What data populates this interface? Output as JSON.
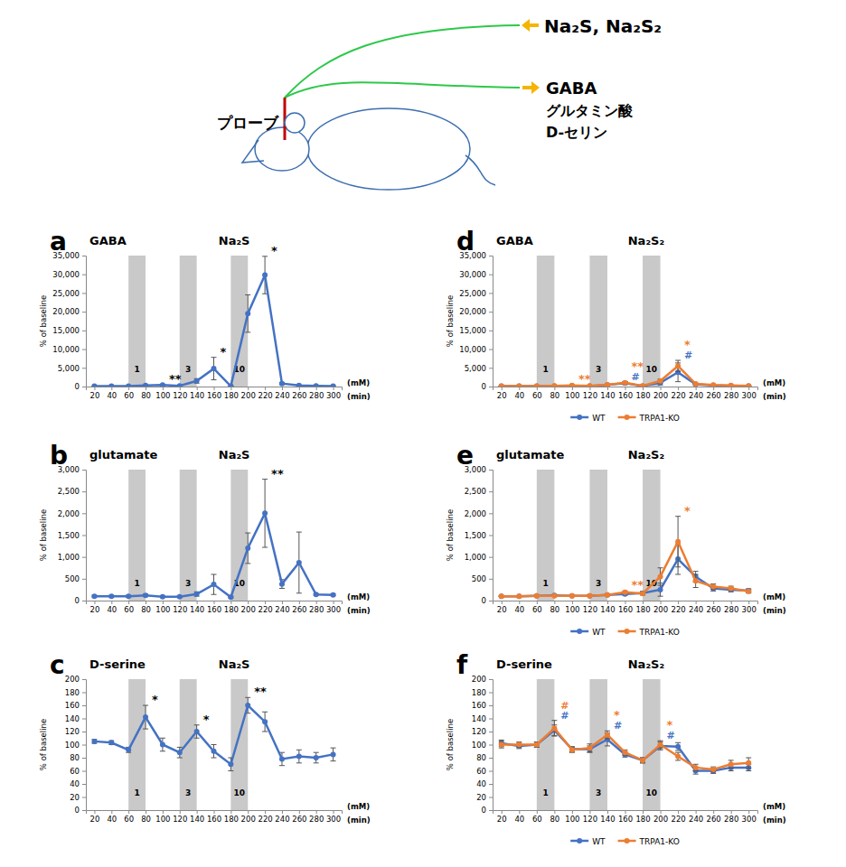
{
  "diagram": {
    "probe_label": "プローブ",
    "input_label": "Na₂S, Na₂S₂",
    "output_labels": [
      "GABA",
      "グルタミン酸",
      "D-セリン"
    ]
  },
  "chart_data": [
    {
      "type": "line",
      "panel": "a",
      "title": "GABA",
      "subtitle": "Na₂S",
      "y_label": "% of baseline",
      "x_label": "(min)",
      "band_label": "(mM)",
      "marker": "circle",
      "x": [
        20,
        40,
        60,
        80,
        100,
        120,
        140,
        160,
        180,
        200,
        220,
        240,
        260,
        280,
        300
      ],
      "xlim": [
        10,
        310
      ],
      "xticks": [
        20,
        40,
        60,
        80,
        100,
        120,
        140,
        160,
        180,
        200,
        220,
        240,
        260,
        280,
        300
      ],
      "ylim": [
        0,
        35000
      ],
      "yticks": [
        0,
        {
          "value": 5000,
          "label": "5,000"
        },
        {
          "value": 10000,
          "label": "10,000"
        },
        {
          "value": 15000,
          "label": "15,000"
        },
        {
          "value": 20000,
          "label": "20,000"
        },
        {
          "value": 25000,
          "label": "25,000"
        },
        {
          "value": 30000,
          "label": "30,000"
        },
        {
          "value": 35000,
          "label": "35,000"
        }
      ],
      "bands": [
        {
          "start": 60,
          "end": 80,
          "label": 1
        },
        {
          "start": 120,
          "end": 140,
          "label": 3
        },
        {
          "start": 180,
          "end": 200,
          "label": 10
        }
      ],
      "series": [
        {
          "color": "#4472c4",
          "values": [
            100,
            100,
            100,
            300,
            400,
            200,
            1500,
            4800,
            100,
            19500,
            29800,
            800,
            300,
            200,
            150
          ],
          "errors": [
            50,
            50,
            50,
            100,
            150,
            100,
            600,
            3000,
            50,
            5000,
            5000,
            300,
            100,
            50,
            50
          ],
          "significance": [
            null,
            null,
            null,
            null,
            "**",
            null,
            null,
            "*",
            null,
            null,
            "*",
            null,
            null,
            null,
            null
          ]
        }
      ]
    },
    {
      "type": "line",
      "panel": "b",
      "title": "glutamate",
      "subtitle": "Na₂S",
      "y_label": "% of baseline",
      "x_label": "(min)",
      "band_label": "(mM)",
      "marker": "circle",
      "x": [
        20,
        40,
        60,
        80,
        100,
        120,
        140,
        160,
        180,
        200,
        220,
        240,
        260,
        280,
        300
      ],
      "xlim": [
        10,
        310
      ],
      "xticks": [
        20,
        40,
        60,
        80,
        100,
        120,
        140,
        160,
        180,
        200,
        220,
        240,
        260,
        280,
        300
      ],
      "ylim": [
        0,
        3000
      ],
      "yticks": [
        0,
        500,
        {
          "value": 1000,
          "label": "1,000"
        },
        {
          "value": 1500,
          "label": "1,500"
        },
        {
          "value": 2000,
          "label": "2,000"
        },
        {
          "value": 2500,
          "label": "2,500"
        },
        {
          "value": 3000,
          "label": "3,000"
        }
      ],
      "bands": [
        {
          "start": 60,
          "end": 80,
          "label": 1
        },
        {
          "start": 120,
          "end": 140,
          "label": 3
        },
        {
          "start": 180,
          "end": 200,
          "label": 10
        }
      ],
      "series": [
        {
          "color": "#4472c4",
          "values": [
            100,
            100,
            100,
            120,
            90,
            90,
            150,
            370,
            80,
            1200,
            2000,
            380,
            870,
            140,
            130
          ],
          "errors": [
            20,
            20,
            20,
            30,
            20,
            20,
            50,
            230,
            20,
            350,
            780,
            100,
            700,
            20,
            20
          ],
          "significance": [
            null,
            null,
            null,
            null,
            null,
            null,
            null,
            null,
            null,
            null,
            "**",
            null,
            null,
            null,
            null
          ]
        }
      ]
    },
    {
      "type": "line",
      "panel": "c",
      "title": "D-serine",
      "subtitle": "Na₂S",
      "y_label": "% of baseline",
      "x_label": "(min)",
      "band_label": "(mM)",
      "marker": "circle",
      "x": [
        20,
        40,
        60,
        80,
        100,
        120,
        140,
        160,
        180,
        200,
        220,
        240,
        260,
        280,
        300
      ],
      "xlim": [
        10,
        310
      ],
      "xticks": [
        20,
        40,
        60,
        80,
        100,
        120,
        140,
        160,
        180,
        200,
        220,
        240,
        260,
        280,
        300
      ],
      "ylim": [
        0,
        200
      ],
      "yticks": [
        0,
        20,
        40,
        60,
        80,
        100,
        120,
        140,
        160,
        180,
        200
      ],
      "bands": [
        {
          "start": 60,
          "end": 80,
          "label": 1
        },
        {
          "start": 120,
          "end": 140,
          "label": 3
        },
        {
          "start": 180,
          "end": 200,
          "label": 10
        }
      ],
      "series": [
        {
          "color": "#4472c4",
          "values": [
            105,
            103,
            92,
            142,
            100,
            88,
            120,
            90,
            70,
            160,
            135,
            78,
            82,
            80,
            85
          ],
          "errors": [
            3,
            3,
            4,
            18,
            10,
            8,
            10,
            10,
            10,
            12,
            15,
            10,
            10,
            8,
            10
          ],
          "significance": [
            null,
            null,
            null,
            "*",
            null,
            null,
            "*",
            null,
            null,
            "**",
            null,
            null,
            null,
            null,
            null
          ]
        }
      ]
    },
    {
      "type": "line",
      "panel": "d",
      "title": "GABA",
      "subtitle": "Na₂S₂",
      "y_label": "% of baseline",
      "x_label": "(min)",
      "band_label": "(mM)",
      "marker": "circle",
      "legend": "bottom",
      "x": [
        20,
        40,
        60,
        80,
        100,
        120,
        140,
        160,
        180,
        200,
        220,
        240,
        260,
        280,
        300
      ],
      "xlim": [
        10,
        310
      ],
      "xticks": [
        20,
        40,
        60,
        80,
        100,
        120,
        140,
        160,
        180,
        200,
        220,
        240,
        260,
        280,
        300
      ],
      "ylim": [
        0,
        35000
      ],
      "yticks": [
        0,
        {
          "value": 5000,
          "label": "5,000"
        },
        {
          "value": 10000,
          "label": "10,000"
        },
        {
          "value": 15000,
          "label": "15,000"
        },
        {
          "value": 20000,
          "label": "20,000"
        },
        {
          "value": 25000,
          "label": "25,000"
        },
        {
          "value": 30000,
          "label": "30,000"
        },
        {
          "value": 35000,
          "label": "35,000"
        }
      ],
      "bands": [
        {
          "start": 60,
          "end": 80,
          "label": 1
        },
        {
          "start": 120,
          "end": 140,
          "label": 3
        },
        {
          "start": 180,
          "end": 200,
          "label": 10
        }
      ],
      "series": [
        {
          "name": "WT",
          "color": "#4472c4",
          "values": [
            100,
            100,
            100,
            150,
            200,
            150,
            400,
            900,
            150,
            1000,
            3800,
            600,
            300,
            200,
            150
          ],
          "errors": [
            30,
            30,
            30,
            50,
            60,
            50,
            150,
            400,
            50,
            600,
            2500,
            200,
            100,
            50,
            50
          ],
          "significance": [
            null,
            null,
            null,
            null,
            null,
            null,
            null,
            "#",
            null,
            null,
            "#",
            null,
            null,
            null,
            null
          ]
        },
        {
          "name": "TRPA1-KO",
          "color": "#ed7d31",
          "values": [
            100,
            100,
            100,
            200,
            300,
            200,
            500,
            1000,
            200,
            1500,
            5500,
            700,
            400,
            300,
            200
          ],
          "errors": [
            30,
            30,
            30,
            60,
            80,
            60,
            150,
            300,
            60,
            500,
            1500,
            200,
            100,
            80,
            50
          ],
          "significance": [
            null,
            null,
            null,
            null,
            "**",
            null,
            null,
            "**",
            null,
            null,
            "*",
            null,
            null,
            null,
            null
          ]
        }
      ]
    },
    {
      "type": "line",
      "panel": "e",
      "title": "glutamate",
      "subtitle": "Na₂S₂",
      "y_label": "% of baseline",
      "x_label": "(min)",
      "band_label": "(mM)",
      "marker": "circle",
      "legend": "bottom",
      "x": [
        20,
        40,
        60,
        80,
        100,
        120,
        140,
        160,
        180,
        200,
        220,
        240,
        260,
        280,
        300
      ],
      "xlim": [
        10,
        310
      ],
      "xticks": [
        20,
        40,
        60,
        80,
        100,
        120,
        140,
        160,
        180,
        200,
        220,
        240,
        260,
        280,
        300
      ],
      "ylim": [
        0,
        3000
      ],
      "yticks": [
        0,
        500,
        {
          "value": 1000,
          "label": "1,000"
        },
        {
          "value": 1500,
          "label": "1,500"
        },
        {
          "value": 2000,
          "label": "2,000"
        },
        {
          "value": 2500,
          "label": "2,500"
        },
        {
          "value": 3000,
          "label": "3,000"
        }
      ],
      "bands": [
        {
          "start": 60,
          "end": 80,
          "label": 1
        },
        {
          "start": 120,
          "end": 140,
          "label": 3
        },
        {
          "start": 180,
          "end": 200,
          "label": 10
        }
      ],
      "series": [
        {
          "name": "WT",
          "color": "#4472c4",
          "values": [
            100,
            100,
            110,
            120,
            110,
            110,
            130,
            150,
            170,
            250,
            950,
            550,
            280,
            250,
            230
          ],
          "errors": [
            10,
            10,
            15,
            20,
            15,
            15,
            20,
            30,
            40,
            150,
            350,
            120,
            60,
            50,
            40
          ],
          "significance": [
            null,
            null,
            null,
            null,
            null,
            null,
            null,
            null,
            null,
            null,
            null,
            null,
            null,
            null,
            null
          ]
        },
        {
          "name": "TRPA1-KO",
          "color": "#ed7d31",
          "values": [
            100,
            100,
            110,
            110,
            110,
            110,
            130,
            190,
            160,
            550,
            1350,
            450,
            320,
            280,
            210
          ],
          "errors": [
            10,
            10,
            15,
            15,
            15,
            15,
            20,
            30,
            30,
            200,
            580,
            150,
            60,
            50,
            40
          ],
          "significance": [
            null,
            null,
            null,
            null,
            null,
            null,
            null,
            "**",
            null,
            null,
            "*",
            null,
            null,
            null,
            null
          ]
        }
      ]
    },
    {
      "type": "line",
      "panel": "f",
      "title": "D-serine",
      "subtitle": "Na₂S₂",
      "y_label": "% of baseline",
      "x_label": "(min)",
      "band_label": "(mM)",
      "marker": "circle",
      "legend": "bottom",
      "x": [
        20,
        40,
        60,
        80,
        100,
        120,
        140,
        160,
        180,
        200,
        220,
        240,
        260,
        280,
        300
      ],
      "xlim": [
        10,
        310
      ],
      "xticks": [
        20,
        40,
        60,
        80,
        100,
        120,
        140,
        160,
        180,
        200,
        220,
        240,
        260,
        280,
        300
      ],
      "ylim": [
        0,
        200
      ],
      "yticks": [
        0,
        20,
        40,
        60,
        80,
        100,
        120,
        140,
        160,
        180,
        200
      ],
      "bands": [
        {
          "start": 60,
          "end": 80,
          "label": 1
        },
        {
          "start": 120,
          "end": 140,
          "label": 3
        },
        {
          "start": 180,
          "end": 200,
          "label": 10
        }
      ],
      "series": [
        {
          "name": "WT",
          "color": "#4472c4",
          "values": [
            102,
            98,
            100,
            122,
            93,
            93,
            108,
            85,
            76,
            98,
            97,
            60,
            60,
            65,
            65
          ],
          "errors": [
            5,
            4,
            4,
            8,
            4,
            5,
            10,
            4,
            4,
            6,
            6,
            5,
            4,
            5,
            5
          ],
          "significance": [
            null,
            null,
            null,
            "#",
            null,
            null,
            "#",
            null,
            null,
            "#",
            null,
            null,
            null,
            null,
            null
          ]
        },
        {
          "name": "TRPA1-KO",
          "color": "#ed7d31",
          "values": [
            100,
            100,
            100,
            125,
            92,
            95,
            115,
            88,
            76,
            100,
            82,
            65,
            62,
            70,
            72
          ],
          "errors": [
            5,
            4,
            4,
            12,
            4,
            6,
            6,
            4,
            4,
            6,
            6,
            5,
            4,
            6,
            8
          ],
          "significance": [
            null,
            null,
            null,
            "#",
            null,
            null,
            "*",
            null,
            null,
            "*",
            null,
            null,
            null,
            null,
            null
          ]
        }
      ]
    }
  ]
}
